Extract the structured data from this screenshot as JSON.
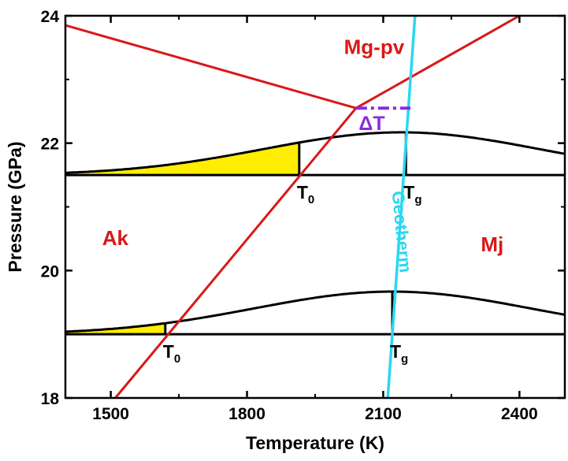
{
  "chart_data": {
    "type": "line",
    "xlabel": "Temperature (K)",
    "ylabel": "Pressure (GPa)",
    "xlim": [
      1400,
      2500
    ],
    "ylim": [
      18,
      24
    ],
    "xticks": [
      1500,
      1800,
      2100,
      2400
    ],
    "yticks": [
      18,
      20,
      22,
      24
    ],
    "xtick_labels": [
      "1500",
      "1800",
      "2100",
      "2400"
    ],
    "ytick_labels": [
      "18",
      "20",
      "22",
      "24"
    ],
    "region_labels": [
      {
        "text": "Mg-pv",
        "x": 2080,
        "y": 23.4
      },
      {
        "text": "Ak",
        "x": 1510,
        "y": 20.4
      },
      {
        "text": "Mj",
        "x": 2340,
        "y": 20.3
      }
    ],
    "boundaries": [
      {
        "id": "ak-pv",
        "points": [
          [
            1400,
            23.85
          ],
          [
            2040,
            22.55
          ]
        ]
      },
      {
        "id": "mj-pv",
        "points": [
          [
            2040,
            22.55
          ],
          [
            2400,
            24.0
          ]
        ]
      },
      {
        "id": "ak-mj",
        "points": [
          [
            1510,
            18.0
          ],
          [
            2040,
            22.55
          ]
        ]
      }
    ],
    "geotherm": {
      "label": "Geotherm",
      "points": [
        [
          2110,
          18.0
        ],
        [
          2170,
          24.0
        ]
      ]
    },
    "delta_t": {
      "label": "ΔT",
      "x_start": 2040,
      "x_end": 2160,
      "y": 22.55
    },
    "profiles": [
      {
        "baseline": 21.5,
        "peak_x": 2140,
        "peak_amp": 0.67,
        "width": 430,
        "t0": {
          "main": "T",
          "sub": "0",
          "x": 1915
        },
        "tg": {
          "main": "T",
          "sub": "g",
          "x": 2150
        }
      },
      {
        "baseline": 19.0,
        "peak_x": 2120,
        "peak_amp": 0.67,
        "width": 430,
        "t0": {
          "main": "T",
          "sub": "0",
          "x": 1620
        },
        "tg": {
          "main": "T",
          "sub": "g",
          "x": 2120
        }
      }
    ],
    "colors": {
      "boundary": "#d91818",
      "geotherm": "#29d8f0",
      "delta_t": "#8a2be2",
      "fill": "#ffee00",
      "profile": "#000000"
    }
  }
}
